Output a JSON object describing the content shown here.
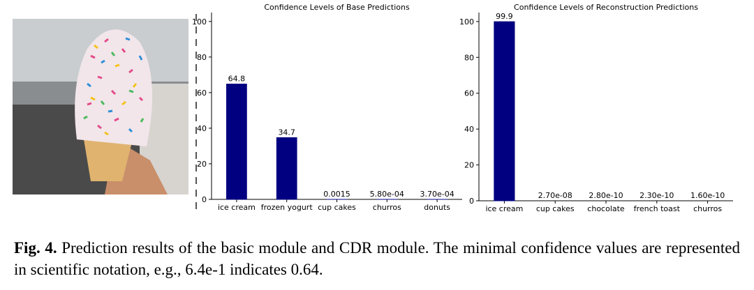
{
  "chart_data": [
    {
      "type": "bar",
      "title": "Confidence Levels of Base Predictions",
      "categories": [
        "ice cream",
        "frozen yogurt",
        "cup cakes",
        "churros",
        "donuts"
      ],
      "values": [
        64.8,
        34.7,
        0.0015,
        0.00058,
        0.00037
      ],
      "value_labels": [
        "64.8",
        "34.7",
        "0.0015",
        "5.80e-04",
        "3.70e-04"
      ],
      "color": "#000080",
      "ylim": [
        0,
        105
      ],
      "yticks": [
        0,
        20,
        40,
        60,
        80,
        100
      ]
    },
    {
      "type": "bar",
      "title": "Confidence Levels of Reconstruction Predictions",
      "categories": [
        "ice cream",
        "cup cakes",
        "chocolate",
        "french toast",
        "churros"
      ],
      "values": [
        99.9,
        2.7e-08,
        2.8e-10,
        2.3e-10,
        1.6e-10
      ],
      "value_labels": [
        "99.9",
        "2.70e-08",
        "2.80e-10",
        "2.30e-10",
        "1.60e-10"
      ],
      "color": "#000080",
      "ylim": [
        0,
        105
      ],
      "yticks": [
        0,
        20,
        40,
        60,
        80,
        100
      ]
    }
  ],
  "caption": {
    "label": "Fig. 4.",
    "text": "Prediction results of the basic module and CDR module. The minimal confidence values are represented in scientific notation, e.g., 6.4e-1 indicates 0.64."
  }
}
